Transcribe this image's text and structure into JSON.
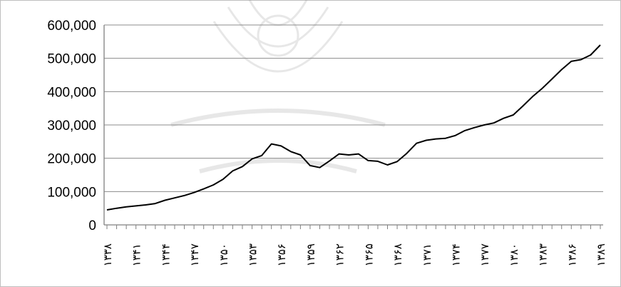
{
  "chart_data": {
    "type": "line",
    "title": "",
    "xlabel": "",
    "ylabel": "",
    "ylim": [
      0,
      600000
    ],
    "yticks": [
      "0",
      "100,000",
      "200,000",
      "300,000",
      "400,000",
      "500,000",
      "600,000"
    ],
    "grid": true,
    "legend": "none",
    "line_color": "#000000",
    "x_tick_labels": [
      "۱۳۳۸",
      "۱۳۴۱",
      "۱۳۴۴",
      "۱۳۴۷",
      "۱۳۵۰",
      "۱۳۵۳",
      "۱۳۵۶",
      "۱۳۵۹",
      "۱۳۶۲",
      "۱۳۶۵",
      "۱۳۶۸",
      "۱۳۷۱",
      "۱۳۷۴",
      "۱۳۷۷",
      "۱۳۸۰",
      "۱۳۸۳",
      "۱۳۸۶",
      "۱۳۸۹"
    ],
    "x": [
      1338,
      1339,
      1340,
      1341,
      1342,
      1343,
      1344,
      1345,
      1346,
      1347,
      1348,
      1349,
      1350,
      1351,
      1352,
      1353,
      1354,
      1355,
      1356,
      1357,
      1358,
      1359,
      1360,
      1361,
      1362,
      1363,
      1364,
      1365,
      1366,
      1367,
      1368,
      1369,
      1370,
      1371,
      1372,
      1373,
      1374,
      1375,
      1376,
      1377,
      1378,
      1379,
      1380,
      1381,
      1382,
      1383,
      1384,
      1385,
      1386,
      1387,
      1388,
      1389
    ],
    "series": [
      {
        "values": [
          45000,
          50000,
          54000,
          57000,
          60000,
          64000,
          74000,
          81000,
          88000,
          97000,
          108000,
          120000,
          137000,
          162000,
          175000,
          198000,
          208000,
          243000,
          237000,
          220000,
          210000,
          178000,
          172000,
          192000,
          213000,
          210000,
          213000,
          193000,
          191000,
          180000,
          190000,
          215000,
          245000,
          254000,
          258000,
          260000,
          268000,
          283000,
          292000,
          300000,
          306000,
          320000,
          330000,
          357000,
          385000,
          410000,
          438000,
          466000,
          491000,
          496000,
          510000,
          540000
        ]
      }
    ]
  }
}
